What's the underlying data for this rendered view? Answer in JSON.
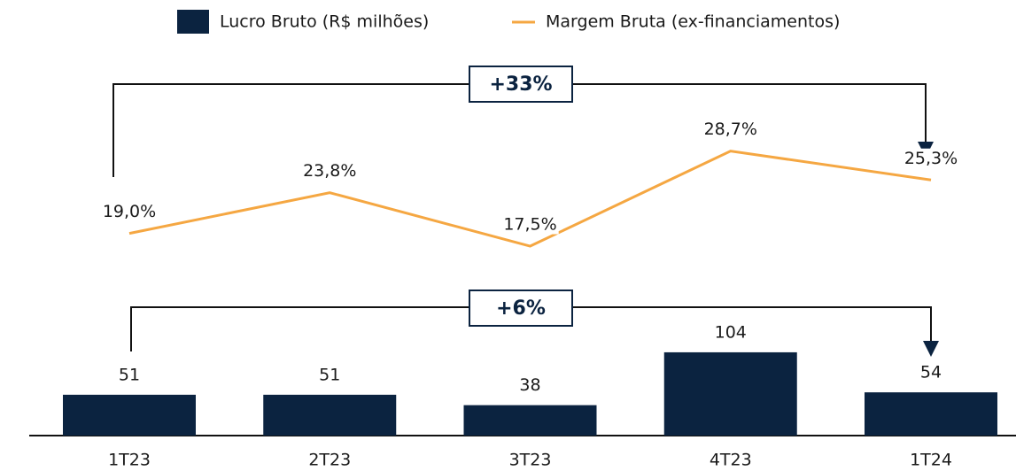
{
  "chart_data": {
    "type": "bar_line",
    "categories": [
      "1T23",
      "2T23",
      "3T23",
      "4T23",
      "1T24"
    ],
    "series": [
      {
        "name": "Lucro Bruto (R$ milhões)",
        "color": "#0b2340",
        "type": "bar",
        "values": [
          51,
          51,
          38,
          104,
          54
        ]
      },
      {
        "name": "Margem Bruta (ex-financiamentos)",
        "color": "#f5a742",
        "type": "line",
        "axis": "y2",
        "values": [
          19.0,
          23.8,
          17.5,
          28.7,
          25.3
        ],
        "value_labels": [
          "19,0%",
          "23,8%",
          "17,5%",
          "28,7%",
          "25,3%"
        ]
      }
    ],
    "ylim": [
      0,
      110
    ],
    "y2lim": [
      15,
      30
    ],
    "annotations": [
      "+33%",
      "+6%"
    ]
  }
}
